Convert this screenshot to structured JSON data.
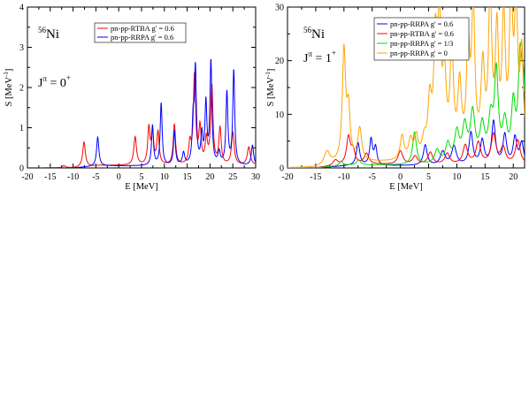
{
  "chart_data": [
    {
      "id": "left",
      "type": "line",
      "xlabel": "E [MeV]",
      "ylabel_main": "S [MeV",
      "ylabel_sup": "-1",
      "ylabel_end": "]",
      "xlim": [
        -20,
        30
      ],
      "ylim": [
        0,
        4
      ],
      "xticks": [
        -20,
        -15,
        -10,
        -5,
        0,
        5,
        10,
        15,
        20,
        25,
        30
      ],
      "xtick_labels": [
        "-20",
        "-15",
        "-10",
        "-5",
        "0",
        "5",
        "10",
        "15",
        "20",
        "25",
        "30"
      ],
      "yticks": [
        0,
        1,
        2,
        3,
        4
      ],
      "ytick_labels": [
        "0",
        "1",
        "2",
        "3",
        "4"
      ],
      "nucleus": {
        "sup": "56",
        "base": "Ni"
      },
      "jpi": {
        "base": "J",
        "sup": "π",
        "eq": " = 0",
        "parity": "+"
      },
      "legend_position": "top-center",
      "series": [
        {
          "name": "pn-pp-RTBA  g' = 0.6",
          "color": "#ff0000",
          "baseline": 0.06,
          "peaks": [
            [
              -12,
              0.05,
              0.4
            ],
            [
              -7.6,
              0.62,
              0.35
            ],
            [
              3.6,
              0.7,
              0.35
            ],
            [
              6.6,
              0.9,
              0.3
            ],
            [
              7.4,
              0.75,
              0.3
            ],
            [
              8.6,
              0.8,
              0.3
            ],
            [
              12.2,
              1.0,
              0.3
            ],
            [
              15.6,
              0.5,
              0.3
            ],
            [
              16.6,
              2.2,
              0.3
            ],
            [
              17.8,
              0.9,
              0.3
            ],
            [
              19.2,
              0.6,
              0.3
            ],
            [
              20.4,
              1.95,
              0.3
            ],
            [
              22.2,
              0.9,
              0.3
            ],
            [
              25,
              0.8,
              0.35
            ],
            [
              28.5,
              0.45,
              0.4
            ]
          ]
        },
        {
          "name": "pn-pp-RRPA  g' = 0.6",
          "color": "#0000ff",
          "baseline": 0.05,
          "peaks": [
            [
              -4.6,
              0.72,
              0.3
            ],
            [
              7.4,
              1.0,
              0.25
            ],
            [
              9.3,
              1.55,
              0.25
            ],
            [
              12.2,
              0.85,
              0.25
            ],
            [
              14.2,
              0.3,
              0.3
            ],
            [
              16.3,
              1.0,
              0.25
            ],
            [
              16.8,
              2.32,
              0.25
            ],
            [
              18.2,
              0.7,
              0.25
            ],
            [
              19.1,
              1.5,
              0.25
            ],
            [
              20.2,
              2.55,
              0.25
            ],
            [
              22,
              0.3,
              0.3
            ],
            [
              23.7,
              1.8,
              0.25
            ],
            [
              25.2,
              2.35,
              0.25
            ],
            [
              29.3,
              0.5,
              0.3
            ]
          ]
        }
      ]
    },
    {
      "id": "right",
      "type": "line",
      "xlabel": "E [MeV]",
      "ylabel_main": "S [MeV",
      "ylabel_sup": "-1",
      "ylabel_end": "]",
      "xlim": [
        -20,
        22
      ],
      "ylim": [
        0,
        30
      ],
      "xticks": [
        -20,
        -15,
        -10,
        -5,
        0,
        5,
        10,
        15,
        20
      ],
      "xtick_labels": [
        "-20",
        "-15",
        "-10",
        "-5",
        "0",
        "5",
        "10",
        "15",
        "20"
      ],
      "yticks": [
        0,
        10,
        20,
        30
      ],
      "ytick_labels": [
        "0",
        "10",
        "20",
        "30"
      ],
      "nucleus": {
        "sup": "56",
        "base": "Ni"
      },
      "jpi": {
        "base": "J",
        "sup": "π",
        "eq": " = 1",
        "parity": "+"
      },
      "legend_position": "top-right",
      "series": [
        {
          "name": "pn-pp-RRPA  g' = 0.6",
          "color": "#0000ff",
          "baseline": 0.4,
          "peaks": [
            [
              -7.5,
              4.2,
              0.35
            ],
            [
              -5.2,
              4.8,
              0.3
            ],
            [
              -4.4,
              3.3,
              0.3
            ],
            [
              4.4,
              3.8,
              0.4
            ],
            [
              7.5,
              2.5,
              0.5
            ],
            [
              9.5,
              3.5,
              0.5
            ],
            [
              12.5,
              6.0,
              0.4
            ],
            [
              14.5,
              4.5,
              0.4
            ],
            [
              16.5,
              8.0,
              0.4
            ],
            [
              18.5,
              5.5,
              0.4
            ],
            [
              20.3,
              5.0,
              0.4
            ],
            [
              21.5,
              4.0,
              0.4
            ]
          ]
        },
        {
          "name": "pn-pp-RTBA  g' = 0.6",
          "color": "#ff0000",
          "baseline": 0.6,
          "peaks": [
            [
              -11.5,
              1.0,
              0.5
            ],
            [
              -9.2,
              5.0,
              0.4
            ],
            [
              -8.4,
              2.5,
              0.4
            ],
            [
              -6,
              2.0,
              0.5
            ],
            [
              0,
              2.5,
              0.5
            ],
            [
              2.6,
              1.5,
              0.5
            ],
            [
              5.3,
              2.2,
              0.5
            ],
            [
              8.3,
              2.0,
              0.5
            ],
            [
              11.5,
              3.5,
              0.5
            ],
            [
              13.8,
              4.0,
              0.5
            ],
            [
              16.5,
              5.5,
              0.5
            ],
            [
              18.2,
              3.0,
              0.5
            ],
            [
              20.8,
              4.5,
              0.5
            ]
          ]
        },
        {
          "name": "pn-pp-RRPA  g' = 1/3",
          "color": "#00dd00",
          "baseline": 0.5,
          "peaks": [
            [
              -10.5,
              0.8,
              0.4
            ],
            [
              -7.4,
              1.0,
              0.4
            ],
            [
              2.5,
              6.0,
              0.4
            ],
            [
              6.5,
              2.5,
              0.5
            ],
            [
              8.4,
              3.5,
              0.5
            ],
            [
              10.0,
              5.5,
              0.5
            ],
            [
              11.4,
              6.5,
              0.5
            ],
            [
              12.8,
              9.0,
              0.5
            ],
            [
              14.5,
              6.5,
              0.5
            ],
            [
              16.0,
              7.5,
              0.5
            ],
            [
              17.0,
              16.0,
              0.4
            ],
            [
              18.5,
              7.0,
              0.5
            ],
            [
              20.0,
              10.0,
              0.4
            ],
            [
              21.2,
              17.5,
              0.4
            ],
            [
              21.8,
              12.0,
              0.4
            ]
          ]
        },
        {
          "name": "pn-pp-RRPA  g' = 0",
          "color": "#ffa500",
          "baseline": 1.0,
          "peaks": [
            [
              -13,
              2.5,
              0.6
            ],
            [
              -10,
              20.5,
              0.35
            ],
            [
              -9.2,
              9.0,
              0.35
            ],
            [
              -7.2,
              6.0,
              0.4
            ],
            [
              0.3,
              4.5,
              0.4
            ],
            [
              1.8,
              3.5,
              0.4
            ],
            [
              2.8,
              4.0,
              0.4
            ],
            [
              4.2,
              3.0,
              0.4
            ],
            [
              5.2,
              10.0,
              0.4
            ],
            [
              6.2,
              20.0,
              0.35
            ],
            [
              6.9,
              23.0,
              0.35
            ],
            [
              7.8,
              14.0,
              0.4
            ],
            [
              9.1,
              20.0,
              0.35
            ],
            [
              10.5,
              13.0,
              0.4
            ],
            [
              12.0,
              19.5,
              0.35
            ],
            [
              12.9,
              27.0,
              0.35
            ],
            [
              14.6,
              16.0,
              0.4
            ],
            [
              15.9,
              29.5,
              0.35
            ],
            [
              17.1,
              22.0,
              0.35
            ],
            [
              18.3,
              25.0,
              0.35
            ],
            [
              19.6,
              29.0,
              0.35
            ],
            [
              20.5,
              26.0,
              0.35
            ],
            [
              21.5,
              18.5,
              0.35
            ]
          ]
        }
      ]
    }
  ]
}
